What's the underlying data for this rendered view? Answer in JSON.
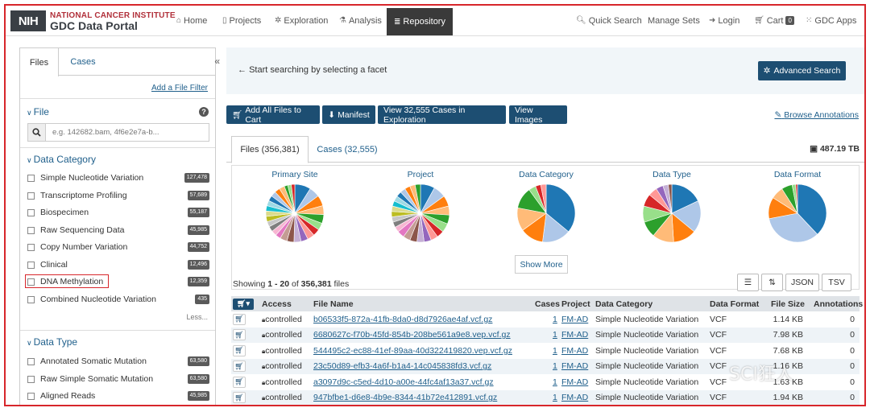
{
  "header": {
    "logo_mark": "NIH",
    "logo_line1": "NATIONAL CANCER INSTITUTE",
    "logo_line2": "GDC Data Portal",
    "nav": [
      {
        "label": "Home",
        "icon": "home-icon"
      },
      {
        "label": "Projects",
        "icon": "file-icon"
      },
      {
        "label": "Exploration",
        "icon": "gears-icon"
      },
      {
        "label": "Analysis",
        "icon": "flask-icon"
      },
      {
        "label": "Repository",
        "icon": "database-icon",
        "active": true
      }
    ],
    "right_nav": [
      {
        "label": "Quick Search",
        "icon": "search-icon"
      },
      {
        "label": "Manage Sets"
      },
      {
        "label": "Login",
        "icon": "login-icon"
      },
      {
        "label": "Cart",
        "icon": "cart-icon",
        "badge": "0"
      },
      {
        "label": "GDC Apps",
        "icon": "grid-icon"
      }
    ]
  },
  "sidebar": {
    "tabs": [
      "Files",
      "Cases"
    ],
    "collapse": "«",
    "add_filter": "Add a File Filter",
    "file_section": "File",
    "search_placeholder": "e.g. 142682.bam, 4f6e2e7a-b...",
    "data_category_title": "Data Category",
    "data_category": [
      {
        "label": "Simple Nucleotide Variation",
        "count": "127,478"
      },
      {
        "label": "Transcriptome Profiling",
        "count": "57,689"
      },
      {
        "label": "Biospecimen",
        "count": "55,187"
      },
      {
        "label": "Raw Sequencing Data",
        "count": "45,985"
      },
      {
        "label": "Copy Number Variation",
        "count": "44,752"
      },
      {
        "label": "Clinical",
        "count": "12,496"
      },
      {
        "label": "DNA Methylation",
        "count": "12,359"
      },
      {
        "label": "Combined Nucleotide Variation",
        "count": "435"
      }
    ],
    "less": "Less...",
    "data_type_title": "Data Type",
    "data_type": [
      {
        "label": "Annotated Somatic Mutation",
        "count": "63,580"
      },
      {
        "label": "Raw Simple Somatic Mutation",
        "count": "63,580"
      },
      {
        "label": "Aligned Reads",
        "count": "45,985"
      }
    ]
  },
  "main": {
    "start_text": "Start searching by selecting a facet",
    "advanced_search": "Advanced Search",
    "actions": [
      "Add All Files to Cart",
      "Manifest",
      "View 32,555 Cases in Exploration",
      "View Images"
    ],
    "browse_annotations": "Browse Annotations",
    "tabs": [
      "Files (356,381)",
      "Cases (32,555)"
    ],
    "total_size": "487.19 TB",
    "charts": [
      {
        "title": "Primary Site"
      },
      {
        "title": "Project"
      },
      {
        "title": "Data Category"
      },
      {
        "title": "Data Type"
      },
      {
        "title": "Data Format"
      }
    ],
    "show_more": "Show More",
    "showing_prefix": "Showing ",
    "showing_range": "1 - 20",
    "showing_of": " of ",
    "showing_total": "356,381",
    "showing_suffix": " files",
    "table_buttons": [
      "JSON",
      "TSV"
    ],
    "columns": [
      "Access",
      "File Name",
      "Cases",
      "Project",
      "Data Category",
      "Data Format",
      "File Size",
      "Annotations"
    ],
    "rows": [
      {
        "access": "controlled",
        "file": "b06533f5-872a-41fb-8da0-d8d7926ae4af.vcf.gz",
        "cases": "1",
        "project": "FM-AD",
        "category": "Simple Nucleotide Variation",
        "format": "VCF",
        "size": "1.14 KB",
        "ann": "0"
      },
      {
        "access": "controlled",
        "file": "6680627c-f70b-45fd-854b-208be561a9e8.vep.vcf.gz",
        "cases": "1",
        "project": "FM-AD",
        "category": "Simple Nucleotide Variation",
        "format": "VCF",
        "size": "7.98 KB",
        "ann": "0"
      },
      {
        "access": "controlled",
        "file": "544495c2-ec88-41ef-89aa-40d322419820.vep.vcf.gz",
        "cases": "1",
        "project": "FM-AD",
        "category": "Simple Nucleotide Variation",
        "format": "VCF",
        "size": "7.68 KB",
        "ann": "0"
      },
      {
        "access": "controlled",
        "file": "23c50d89-efb3-4a6f-b1a4-14c045838fd3.vcf.gz",
        "cases": "1",
        "project": "FM-AD",
        "category": "Simple Nucleotide Variation",
        "format": "VCF",
        "size": "1.16 KB",
        "ann": "0"
      },
      {
        "access": "controlled",
        "file": "a3097d9c-c5ed-4d10-a00e-44fc4af13a37.vcf.gz",
        "cases": "1",
        "project": "FM-AD",
        "category": "Simple Nucleotide Variation",
        "format": "VCF",
        "size": "1.63 KB",
        "ann": "0"
      },
      {
        "access": "controlled",
        "file": "947bfbe1-d6e8-4b9e-8344-41b72e412891.vcf.gz",
        "cases": "1",
        "project": "FM-AD",
        "category": "Simple Nucleotide Variation",
        "format": "VCF",
        "size": "1.94 KB",
        "ann": "0"
      }
    ]
  },
  "watermark": "SCI狂人",
  "colors": {
    "accent": "#1d4e72",
    "link": "#1f5f8b",
    "highlight": "#d7262b"
  }
}
